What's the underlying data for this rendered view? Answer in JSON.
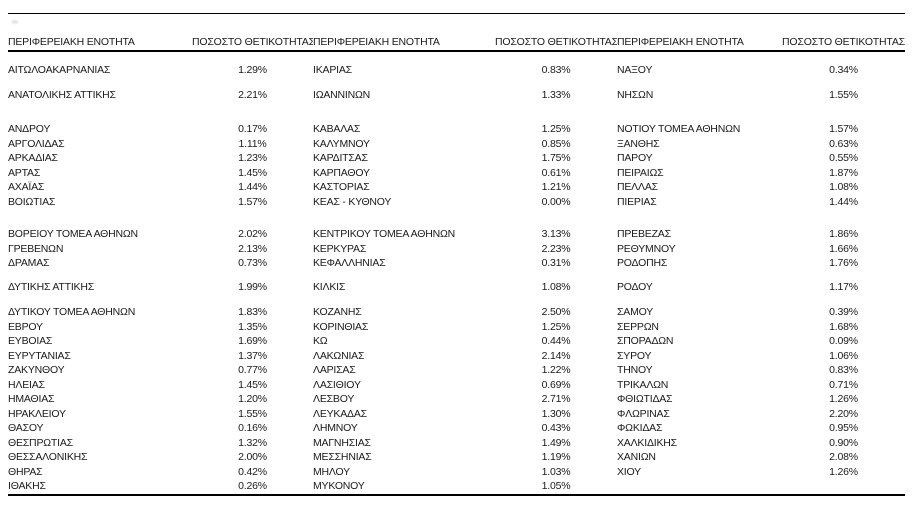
{
  "table": {
    "headers": {
      "region": "ΠΕΡΙΦΕΡΕΙΑΚΗ ΕΝΟΤΗΤΑ",
      "positivity": "ΠΟΣΟΣΤΟ ΘΕΤΙΚΟΤΗΤΑΣ"
    },
    "rows": [
      {
        "spacer": 11
      },
      {
        "cells": [
          [
            "ΑΙΤΩΛΟΑΚΑΡΝΑΝΙΑΣ",
            "1.29%"
          ],
          [
            "ΙΚΑΡΙΑΣ",
            "0.83%"
          ],
          [
            "ΝΑΞΟΥ",
            "0.34%"
          ]
        ]
      },
      {
        "spacer": 10
      },
      {
        "cells": [
          [
            "ΑΝΑΤΟΛΙΚΗΣ ΑΤΤΙΚΗΣ",
            "2.21%"
          ],
          [
            "ΙΩΑΝΝΙΝΩΝ",
            "1.33%"
          ],
          [
            "ΝΗΣΩΝ",
            "1.55%"
          ]
        ]
      },
      {
        "spacer": 20
      },
      {
        "cells": [
          [
            "ΑΝΔΡΟΥ",
            "0.17%"
          ],
          [
            "ΚΑΒΑΛΑΣ",
            "1.25%"
          ],
          [
            "ΝΟΤΙΟΥ ΤΟΜΕΑ ΑΘΗΝΩΝ",
            "1.57%"
          ]
        ]
      },
      {
        "cells": [
          [
            "ΑΡΓΟΛΙΔΑΣ",
            "1.11%"
          ],
          [
            "ΚΑΛΥΜΝΟΥ",
            "0.85%"
          ],
          [
            "ΞΑΝΘΗΣ",
            "0.63%"
          ]
        ]
      },
      {
        "cells": [
          [
            "ΑΡΚΑΔΙΑΣ",
            "1.23%"
          ],
          [
            "ΚΑΡΔΙΤΣΑΣ",
            "1.75%"
          ],
          [
            "ΠΑΡΟΥ",
            "0.55%"
          ]
        ]
      },
      {
        "cells": [
          [
            "ΑΡΤΑΣ",
            "1.45%"
          ],
          [
            "ΚΑΡΠΑΘΟΥ",
            "0.61%"
          ],
          [
            "ΠΕΙΡΑΙΩΣ",
            "1.87%"
          ]
        ]
      },
      {
        "cells": [
          [
            "ΑΧΑΪΑΣ",
            "1.44%"
          ],
          [
            "ΚΑΣΤΟΡΙΑΣ",
            "1.21%"
          ],
          [
            "ΠΕΛΛΑΣ",
            "1.08%"
          ]
        ]
      },
      {
        "cells": [
          [
            "ΒΟΙΩΤΙΑΣ",
            "1.57%"
          ],
          [
            "ΚΕΑΣ - ΚΥΘΝΟΥ",
            "0.00%"
          ],
          [
            "ΠΙΕΡΙΑΣ",
            "1.44%"
          ]
        ]
      },
      {
        "spacer": 18
      },
      {
        "cells": [
          [
            "ΒΟΡΕΙΟΥ ΤΟΜΕΑ ΑΘΗΝΩΝ",
            "2.02%"
          ],
          [
            "ΚΕΝΤΡΙΚΟΥ ΤΟΜΕΑ ΑΘΗΝΩΝ",
            "3.13%"
          ],
          [
            "ΠΡΕΒΕΖΑΣ",
            "1.86%"
          ]
        ]
      },
      {
        "cells": [
          [
            "ΓΡΕΒΕΝΩΝ",
            "2.13%"
          ],
          [
            "ΚΕΡΚΥΡΑΣ",
            "2.23%"
          ],
          [
            "ΡΕΘΥΜΝΟΥ",
            "1.66%"
          ]
        ]
      },
      {
        "cells": [
          [
            "ΔΡΑΜΑΣ",
            "0.73%"
          ],
          [
            "ΚΕΦΑΛΛΗΝΙΑΣ",
            "0.31%"
          ],
          [
            "ΡΟΔΟΠΗΣ",
            "1.76%"
          ]
        ]
      },
      {
        "spacer": 9
      },
      {
        "cells": [
          [
            "ΔΥΤΙΚΗΣ ΑΤΤΙΚΗΣ",
            "1.99%"
          ],
          [
            "ΚΙΛΚΙΣ",
            "1.08%"
          ],
          [
            "ΡΟΔΟΥ",
            "1.17%"
          ]
        ]
      },
      {
        "spacer": 11
      },
      {
        "cells": [
          [
            "ΔΥΤΙΚΟΥ ΤΟΜΕΑ ΑΘΗΝΩΝ",
            "1.83%"
          ],
          [
            "ΚΟΖΑΝΗΣ",
            "2.50%"
          ],
          [
            "ΣΑΜΟΥ",
            "0.39%"
          ]
        ]
      },
      {
        "cells": [
          [
            "ΕΒΡΟΥ",
            "1.35%"
          ],
          [
            "ΚΟΡΙΝΘΙΑΣ",
            "1.25%"
          ],
          [
            "ΣΕΡΡΩΝ",
            "1.68%"
          ]
        ]
      },
      {
        "cells": [
          [
            "ΕΥΒΟΙΑΣ",
            "1.69%"
          ],
          [
            "ΚΩ",
            "0.44%"
          ],
          [
            "ΣΠΟΡΑΔΩΝ",
            "0.09%"
          ]
        ]
      },
      {
        "cells": [
          [
            "ΕΥΡΥΤΑΝΙΑΣ",
            "1.37%"
          ],
          [
            "ΛΑΚΩΝΙΑΣ",
            "2.14%"
          ],
          [
            "ΣΥΡΟΥ",
            "1.06%"
          ]
        ]
      },
      {
        "cells": [
          [
            "ΖΑΚΥΝΘΟΥ",
            "0.77%"
          ],
          [
            "ΛΑΡΙΣΑΣ",
            "1.22%"
          ],
          [
            "ΤΗΝΟΥ",
            "0.83%"
          ]
        ]
      },
      {
        "cells": [
          [
            "ΗΛΕΙΑΣ",
            "1.45%"
          ],
          [
            "ΛΑΣΙΘΙΟΥ",
            "0.69%"
          ],
          [
            "ΤΡΙΚΑΛΩΝ",
            "0.71%"
          ]
        ]
      },
      {
        "cells": [
          [
            "ΗΜΑΘΙΑΣ",
            "1.20%"
          ],
          [
            "ΛΕΣΒΟΥ",
            "2.71%"
          ],
          [
            "ΦΘΙΩΤΙΔΑΣ",
            "1.26%"
          ]
        ]
      },
      {
        "cells": [
          [
            "ΗΡΑΚΛΕΙΟΥ",
            "1.55%"
          ],
          [
            "ΛΕΥΚΑΔΑΣ",
            "1.30%"
          ],
          [
            "ΦΛΩΡΙΝΑΣ",
            "2.20%"
          ]
        ]
      },
      {
        "cells": [
          [
            "ΘΑΣΟΥ",
            "0.16%"
          ],
          [
            "ΛΗΜΝΟΥ",
            "0.43%"
          ],
          [
            "ΦΩΚΙΔΑΣ",
            "0.95%"
          ]
        ]
      },
      {
        "cells": [
          [
            "ΘΕΣΠΡΩΤΙΑΣ",
            "1.32%"
          ],
          [
            "ΜΑΓΝΗΣΙΑΣ",
            "1.49%"
          ],
          [
            "ΧΑΛΚΙΔΙΚΗΣ",
            "0.90%"
          ]
        ]
      },
      {
        "cells": [
          [
            "ΘΕΣΣΑΛΟΝΙΚΗΣ",
            "2.00%"
          ],
          [
            "ΜΕΣΣΗΝΙΑΣ",
            "1.19%"
          ],
          [
            "ΧΑΝΙΩΝ",
            "2.08%"
          ]
        ]
      },
      {
        "cells": [
          [
            "ΘΗΡΑΣ",
            "0.42%"
          ],
          [
            "ΜΗΛΟΥ",
            "1.03%"
          ],
          [
            "ΧΙΟΥ",
            "1.26%"
          ]
        ]
      },
      {
        "cells": [
          [
            "ΙΘΑΚΗΣ",
            "0.26%"
          ],
          [
            "ΜΥΚΟΝΟΥ",
            "1.05%"
          ],
          [
            "",
            ""
          ]
        ]
      }
    ],
    "border_color": "#000000"
  }
}
